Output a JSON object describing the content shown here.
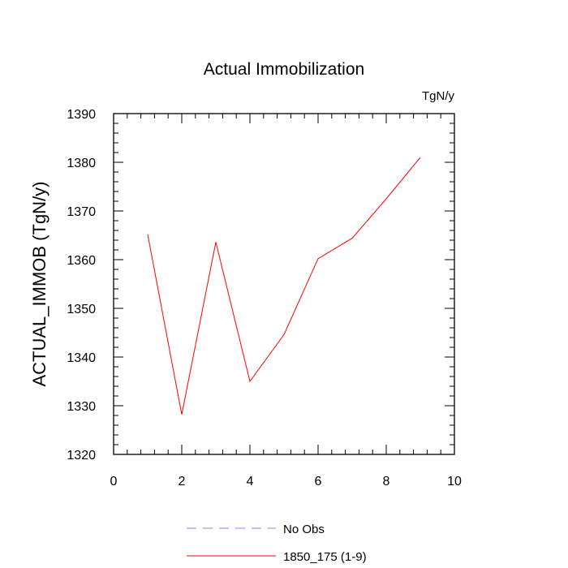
{
  "chart_data": {
    "type": "line",
    "title": "Actual Immobilization",
    "units_label": "TgN/y",
    "ylabel": "ACTUAL_IMMOB  (TgN/y)",
    "xlabel": "",
    "xlim": [
      0,
      10
    ],
    "ylim": [
      1320,
      1390
    ],
    "x_ticks": [
      0,
      2,
      4,
      6,
      8,
      10
    ],
    "y_ticks": [
      1320,
      1330,
      1340,
      1350,
      1360,
      1370,
      1380,
      1390
    ],
    "grid": false,
    "legend_position": "bottom",
    "series": [
      {
        "name": "1850_175 (1-9)",
        "color": "#ff0000",
        "style": "solid",
        "x": [
          1,
          2,
          3,
          4,
          5,
          6,
          7,
          8,
          9
        ],
        "y": [
          1365.2,
          1328.2,
          1363.6,
          1335.0,
          1344.6,
          1360.2,
          1364.4,
          1372.5,
          1381.0
        ]
      }
    ],
    "legend": [
      {
        "label": "No Obs",
        "color": "#8080ff",
        "style": "dashed"
      },
      {
        "label": "1850_175 (1-9)",
        "color": "#ff0000",
        "style": "solid"
      }
    ]
  }
}
